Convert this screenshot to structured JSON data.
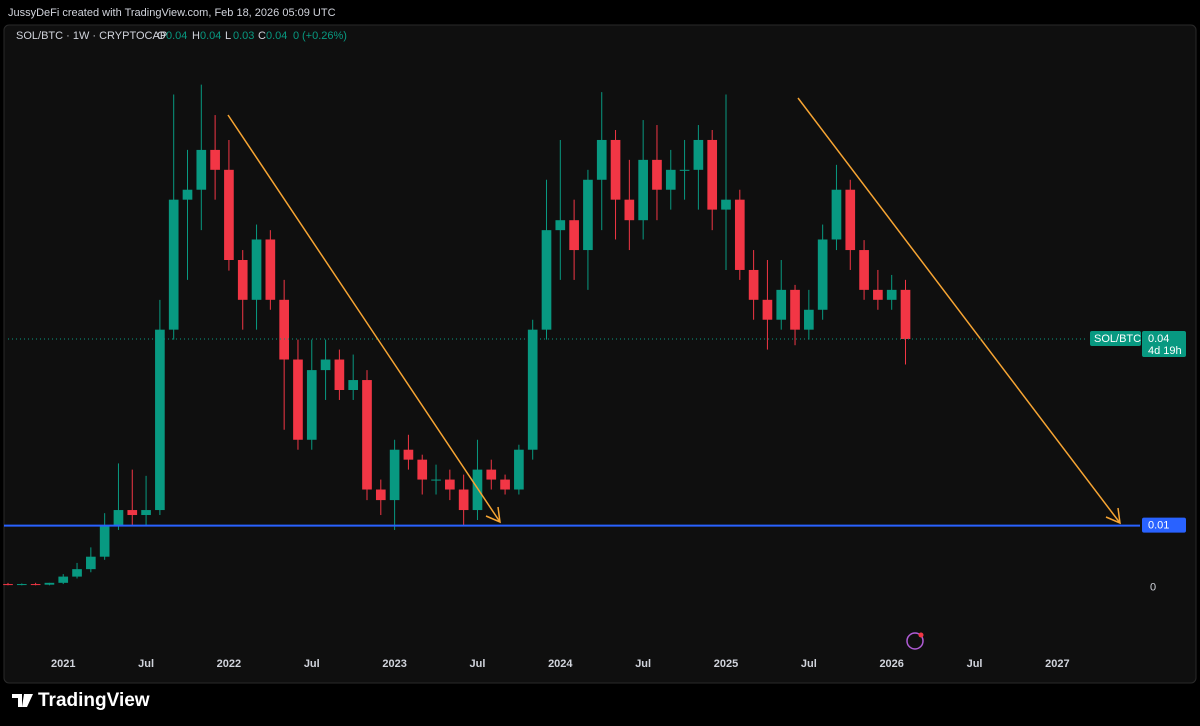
{
  "caption": "JussyDeFi created with TradingView.com, Feb 18, 2026 05:09 UTC",
  "branding": "TradingView",
  "chart_data": {
    "type": "candlestick",
    "header": {
      "symbol": "SOL/BTC · 1W · CRYPTOCAP",
      "fields": [
        {
          "label": "O",
          "value": 0.04
        },
        {
          "label": "H",
          "value": 0.04
        },
        {
          "label": "L",
          "value": 0.03
        },
        {
          "label": "C",
          "value": 0.04
        }
      ],
      "change": 0,
      "change_pct": "(+0.26%)"
    },
    "up_color": "#089981",
    "down_color": "#f23645",
    "x": [
      "2020-09",
      "2020-10",
      "2020-11",
      "2020-12",
      "2021-01",
      "2021-02",
      "2021-03",
      "2021-04",
      "2021-05",
      "2021-06",
      "2021-07",
      "2021-08",
      "2021-09",
      "2021-10",
      "2021-11",
      "2021-12",
      "2022-01",
      "2022-02",
      "2022-03",
      "2022-04",
      "2022-05",
      "2022-06",
      "2022-07",
      "2022-08",
      "2022-09",
      "2022-10",
      "2022-11",
      "2022-12",
      "2023-01",
      "2023-02",
      "2023-03",
      "2023-04",
      "2023-05",
      "2023-06",
      "2023-07",
      "2023-08",
      "2023-09",
      "2023-10",
      "2023-11",
      "2023-12",
      "2024-01",
      "2024-02",
      "2024-03",
      "2024-04",
      "2024-05",
      "2024-06",
      "2024-07",
      "2024-08",
      "2024-09",
      "2024-10",
      "2024-11",
      "2024-12",
      "2025-01",
      "2025-02",
      "2025-03",
      "2025-04",
      "2025-05",
      "2025-06",
      "2025-07",
      "2025-08",
      "2025-09",
      "2025-10",
      "2025-11",
      "2025-12",
      "2026-01",
      "2026-02"
    ],
    "open": [
      0.0006,
      0.0005,
      0.0006,
      0.0005,
      0.0008,
      0.0018,
      0.003,
      0.005,
      0.01,
      0.0125,
      0.0117,
      0.0125,
      0.0415,
      0.0624,
      0.064,
      0.0704,
      0.0672,
      0.0527,
      0.0463,
      0.056,
      0.0463,
      0.0367,
      0.0238,
      0.035,
      0.0367,
      0.0318,
      0.0334,
      0.0158,
      0.0141,
      0.0222,
      0.0206,
      0.0174,
      0.0174,
      0.0158,
      0.0125,
      0.019,
      0.0174,
      0.0158,
      0.0222,
      0.0415,
      0.0575,
      0.0591,
      0.0543,
      0.0656,
      0.072,
      0.0624,
      0.0591,
      0.0688,
      0.064,
      0.0672,
      0.0672,
      0.072,
      0.0608,
      0.0624,
      0.0511,
      0.0463,
      0.0431,
      0.0479,
      0.0415,
      0.0447,
      0.056,
      0.064,
      0.0543,
      0.0479,
      0.0463,
      0.0479
    ],
    "high": [
      0.0008,
      0.0007,
      0.0008,
      0.0008,
      0.0022,
      0.004,
      0.0065,
      0.012,
      0.02,
      0.019,
      0.018,
      0.0463,
      0.0793,
      0.0704,
      0.0809,
      0.076,
      0.072,
      0.0543,
      0.0584,
      0.0575,
      0.0495,
      0.0399,
      0.0399,
      0.0399,
      0.0383,
      0.0375,
      0.035,
      0.0174,
      0.0238,
      0.0246,
      0.0214,
      0.0198,
      0.019,
      0.0182,
      0.0238,
      0.0206,
      0.0182,
      0.023,
      0.0431,
      0.0656,
      0.072,
      0.0624,
      0.0672,
      0.0797,
      0.0736,
      0.0688,
      0.0752,
      0.0744,
      0.0704,
      0.072,
      0.0744,
      0.0736,
      0.0793,
      0.064,
      0.0543,
      0.0527,
      0.0527,
      0.0487,
      0.0479,
      0.0584,
      0.068,
      0.0656,
      0.0559,
      0.0511,
      0.0503,
      0.0495
    ],
    "low": [
      0.0004,
      0.0004,
      0.0004,
      0.0004,
      0.0006,
      0.0015,
      0.0025,
      0.0045,
      0.0093,
      0.0101,
      0.0101,
      0.0117,
      0.0399,
      0.0495,
      0.0575,
      0.0624,
      0.051,
      0.0415,
      0.0415,
      0.0447,
      0.0254,
      0.0222,
      0.0222,
      0.0302,
      0.0302,
      0.0302,
      0.0141,
      0.0117,
      0.0093,
      0.019,
      0.015,
      0.015,
      0.0141,
      0.0101,
      0.0109,
      0.0158,
      0.015,
      0.015,
      0.0206,
      0.0399,
      0.0495,
      0.0495,
      0.0479,
      0.0575,
      0.056,
      0.0543,
      0.056,
      0.0591,
      0.0608,
      0.0624,
      0.0608,
      0.0575,
      0.0511,
      0.0495,
      0.0431,
      0.0383,
      0.0415,
      0.039,
      0.0399,
      0.0431,
      0.0543,
      0.0511,
      0.0463,
      0.0447,
      0.0447,
      0.0359
    ],
    "close": [
      0.0005,
      0.0006,
      0.0005,
      0.0008,
      0.0018,
      0.003,
      0.005,
      0.01,
      0.0125,
      0.0117,
      0.0125,
      0.0415,
      0.0624,
      0.064,
      0.0704,
      0.0672,
      0.0527,
      0.0463,
      0.056,
      0.0463,
      0.0367,
      0.0238,
      0.035,
      0.0367,
      0.0318,
      0.0334,
      0.0158,
      0.0141,
      0.0222,
      0.0206,
      0.0174,
      0.0174,
      0.0158,
      0.0125,
      0.019,
      0.0174,
      0.0158,
      0.0222,
      0.0415,
      0.0575,
      0.0591,
      0.0543,
      0.0656,
      0.072,
      0.0624,
      0.0591,
      0.0688,
      0.064,
      0.0672,
      0.0672,
      0.072,
      0.0608,
      0.0624,
      0.0511,
      0.0463,
      0.0431,
      0.0479,
      0.0415,
      0.0447,
      0.056,
      0.064,
      0.0543,
      0.0479,
      0.0463,
      0.0479,
      0.04
    ],
    "xlim": [
      "2020-09",
      "2027-03"
    ],
    "xticks": [
      {
        "value": "2021-01",
        "label": "2021"
      },
      {
        "value": "2021-07",
        "label": "Jul"
      },
      {
        "value": "2022-01",
        "label": "2022"
      },
      {
        "value": "2022-07",
        "label": "Jul"
      },
      {
        "value": "2023-01",
        "label": "2023"
      },
      {
        "value": "2023-07",
        "label": "Jul"
      },
      {
        "value": "2024-01",
        "label": "2024"
      },
      {
        "value": "2024-07",
        "label": "Jul"
      },
      {
        "value": "2025-01",
        "label": "2025"
      },
      {
        "value": "2025-07",
        "label": "Jul"
      },
      {
        "value": "2026-01",
        "label": "2026"
      },
      {
        "value": "2026-07",
        "label": "Jul"
      },
      {
        "value": "2027-01",
        "label": "2027"
      }
    ],
    "ylim": [
      -0.01,
      0.09
    ],
    "yticks": [
      0
    ],
    "last_price": {
      "symbol": "SOL/BTC",
      "value": 0.04,
      "countdown": "4d 19h",
      "color": "#089981"
    },
    "hline": {
      "value": 0.01,
      "color": "#2962ff"
    }
  }
}
